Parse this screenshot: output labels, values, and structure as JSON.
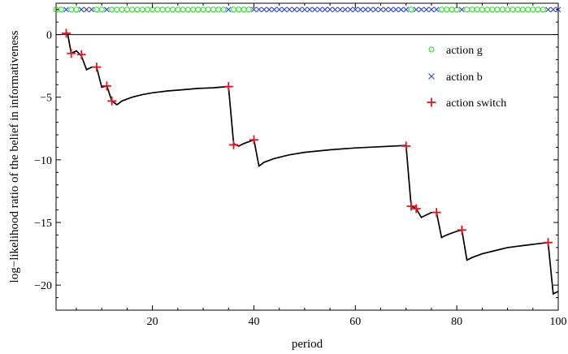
{
  "chart_data": {
    "type": "line",
    "title": "",
    "xlabel": "period",
    "ylabel": "log−likelihood ratio of the belief in informativeness",
    "xlim": [
      1,
      100
    ],
    "ylim": [
      -22,
      2.5
    ],
    "xticks": [
      20,
      40,
      60,
      80,
      100
    ],
    "yticks": [
      0,
      -5,
      -10,
      -15,
      -20
    ],
    "xtick_labels": [
      "20",
      "40",
      "60",
      "80",
      "100"
    ],
    "ytick_labels": [
      "0",
      "−5",
      "−10",
      "−15",
      "−20"
    ],
    "grid": false,
    "zero_line": true,
    "legend_placement": "top-right",
    "legend": [
      {
        "label": "action g",
        "marker": "circle",
        "color": "#22dd22"
      },
      {
        "label": "action b",
        "marker": "x",
        "color": "#2b3fe0"
      },
      {
        "label": "action switch",
        "marker": "plus",
        "color": "#e0141e"
      }
    ],
    "actions_y": 2,
    "actions": {
      "b_periods": [
        3,
        6,
        7,
        8,
        11,
        35,
        40,
        41,
        42,
        43,
        44,
        45,
        46,
        47,
        48,
        49,
        50,
        51,
        52,
        53,
        54,
        55,
        56,
        57,
        58,
        59,
        60,
        61,
        62,
        63,
        64,
        65,
        66,
        67,
        68,
        69,
        70,
        72,
        73,
        74,
        75,
        76,
        81,
        98,
        99,
        100
      ],
      "g_periods": [
        1,
        2,
        4,
        5,
        9,
        10,
        12,
        13,
        14,
        15,
        16,
        17,
        18,
        19,
        20,
        21,
        22,
        23,
        24,
        25,
        26,
        27,
        28,
        29,
        30,
        31,
        32,
        33,
        34,
        36,
        37,
        38,
        39,
        71,
        77,
        78,
        79,
        80,
        82,
        83,
        84,
        85,
        86,
        87,
        88,
        89,
        90,
        91,
        92,
        93,
        94,
        95,
        96,
        97
      ]
    },
    "series": [
      {
        "name": "",
        "color": "#000000",
        "points": [
          [
            3,
            0.2
          ],
          [
            3.3,
            0.0
          ],
          [
            4,
            -1.5
          ],
          [
            5,
            -1.3
          ],
          [
            6,
            -1.7
          ],
          [
            7,
            -2.8
          ],
          [
            8,
            -2.6
          ],
          [
            9,
            -2.6
          ],
          [
            10,
            -4.2
          ],
          [
            11,
            -4.1
          ],
          [
            12,
            -5.3
          ],
          [
            13,
            -5.6
          ],
          [
            14,
            -5.3
          ],
          [
            16,
            -5.0
          ],
          [
            18,
            -4.8
          ],
          [
            20,
            -4.65
          ],
          [
            23,
            -4.5
          ],
          [
            26,
            -4.4
          ],
          [
            29,
            -4.3
          ],
          [
            32,
            -4.25
          ],
          [
            35,
            -4.15
          ],
          [
            36,
            -8.7
          ],
          [
            37,
            -8.9
          ],
          [
            38,
            -8.7
          ],
          [
            40,
            -8.4
          ],
          [
            41,
            -10.5
          ],
          [
            42,
            -10.2
          ],
          [
            44,
            -9.9
          ],
          [
            47,
            -9.6
          ],
          [
            50,
            -9.4
          ],
          [
            55,
            -9.2
          ],
          [
            60,
            -9.05
          ],
          [
            65,
            -8.95
          ],
          [
            70,
            -8.85
          ],
          [
            71,
            -13.7
          ],
          [
            72,
            -13.9
          ],
          [
            73,
            -14.6
          ],
          [
            74,
            -14.4
          ],
          [
            75,
            -14.2
          ],
          [
            76,
            -14.2
          ],
          [
            77,
            -16.2
          ],
          [
            78,
            -16.0
          ],
          [
            79,
            -15.85
          ],
          [
            80,
            -15.7
          ],
          [
            81,
            -15.6
          ],
          [
            82,
            -18.0
          ],
          [
            83,
            -17.8
          ],
          [
            85,
            -17.5
          ],
          [
            87,
            -17.3
          ],
          [
            90,
            -17.0
          ],
          [
            93,
            -16.85
          ],
          [
            96,
            -16.7
          ],
          [
            98,
            -16.6
          ],
          [
            99,
            -20.7
          ],
          [
            99.5,
            -20.6
          ],
          [
            100,
            -20.5
          ]
        ]
      }
    ],
    "switch_points": [
      [
        3,
        0.1
      ],
      [
        4,
        -1.5
      ],
      [
        6,
        -1.6
      ],
      [
        9,
        -2.6
      ],
      [
        11,
        -4.1
      ],
      [
        12,
        -5.3
      ],
      [
        35,
        -4.15
      ],
      [
        36,
        -8.8
      ],
      [
        40,
        -8.4
      ],
      [
        70,
        -8.9
      ],
      [
        71,
        -13.7
      ],
      [
        72,
        -13.9
      ],
      [
        76,
        -14.2
      ],
      [
        81,
        -15.6
      ],
      [
        98,
        -16.6
      ]
    ]
  }
}
